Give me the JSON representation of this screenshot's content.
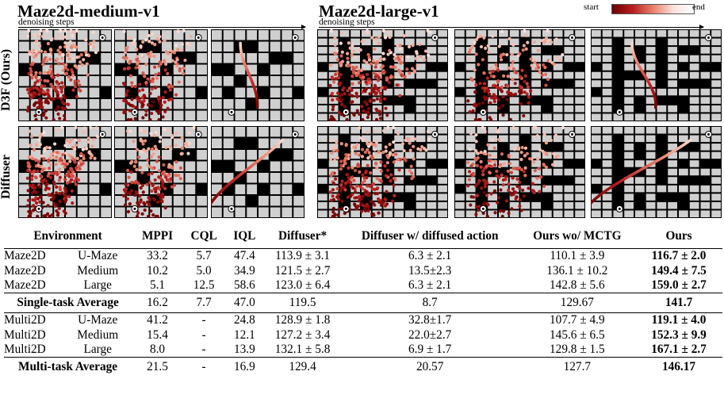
{
  "figure": {
    "left_title": "Maze2d-medium-v1",
    "right_title": "Maze2d-large-v1",
    "steps_label": "denoising steps",
    "row_labels": [
      "D3F (Ours)",
      "Diffuser"
    ],
    "legend": {
      "start": "start",
      "end": "end",
      "colors": [
        "#6b0000",
        "#b81f1f",
        "#e8806a",
        "#fbe3dc",
        "#ffffff"
      ]
    }
  },
  "table": {
    "headers": [
      "Environment",
      "MPPI",
      "CQL",
      "IQL",
      "Diffuser*",
      "Diffuser w/ diffused action",
      "Ours wo/ MCTG",
      "Ours"
    ],
    "single_rows": [
      {
        "env": "Maze2D",
        "task": "U-Maze",
        "mppi": "33.2",
        "cql": "5.7",
        "iql": "47.4",
        "diffuser": "113.9 ± 3.1",
        "diffuser_action": "6.3 ± 2.1",
        "ours_wo": "110.1 ± 3.9",
        "ours": "116.7",
        "ours_std": "± 2.0"
      },
      {
        "env": "Maze2D",
        "task": "Medium",
        "mppi": "10.2",
        "cql": "5.0",
        "iql": "34.9",
        "diffuser": "121.5 ± 2.7",
        "diffuser_action": "13.5±2.3",
        "ours_wo": "136.1 ± 10.2",
        "ours": "149.4",
        "ours_std": "± 7.5"
      },
      {
        "env": "Maze2D",
        "task": "Large",
        "mppi": "5.1",
        "cql": "12.5",
        "iql": "58.6",
        "diffuser": "123.0 ± 6.4",
        "diffuser_action": "6.3 ± 2.1",
        "ours_wo": "142.8 ± 5.6",
        "ours": "159.0",
        "ours_std": "± 2.7"
      }
    ],
    "single_avg": {
      "label": "Single-task Average",
      "mppi": "16.2",
      "cql": "7.7",
      "iql": "47.0",
      "diffuser": "119.5",
      "diffuser_action": "8.7",
      "ours_wo": "129.67",
      "ours": "141.7"
    },
    "multi_rows": [
      {
        "env": "Multi2D",
        "task": "U-Maze",
        "mppi": "41.2",
        "cql": "-",
        "iql": "24.8",
        "diffuser": "128.9 ± 1.8",
        "diffuser_action": "32.8±1.7",
        "ours_wo": "107.7 ± 4.9",
        "ours": "119.1",
        "ours_std": "± 4.0"
      },
      {
        "env": "Multi2D",
        "task": "Medium",
        "mppi": "15.4",
        "cql": "-",
        "iql": "12.1",
        "diffuser": "127.2 ± 3.4",
        "diffuser_action": "22.0±2.7",
        "ours_wo": "145.6 ± 6.5",
        "ours": "152.3",
        "ours_std": "± 9.9"
      },
      {
        "env": "Multi2D",
        "task": "Large",
        "mppi": "8.0",
        "cql": "-",
        "iql": "13.9",
        "diffuser": "132.1 ± 5.8",
        "diffuser_action": "6.9 ± 1.7",
        "ours_wo": "129.8 ± 1.5",
        "ours": "167.1",
        "ours_std": "± 2.7"
      }
    ],
    "multi_avg": {
      "label": "Multi-task Average",
      "mppi": "21.5",
      "cql": "-",
      "iql": "16.9",
      "diffuser": "129.4",
      "diffuser_action": "20.57",
      "ours_wo": "127.7",
      "ours": "146.17"
    }
  }
}
